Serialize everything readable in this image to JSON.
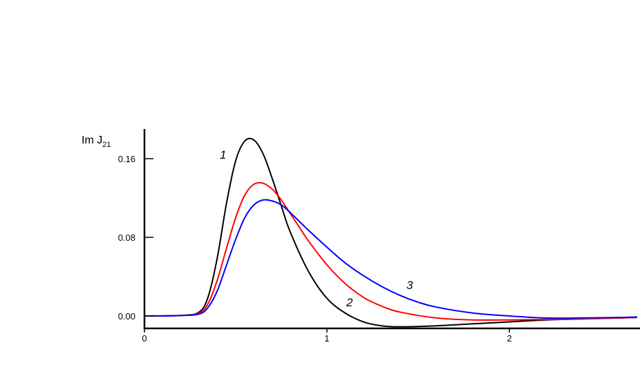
{
  "chart_data": {
    "type": "line",
    "ylabel": {
      "main": "Im J",
      "sub": "21"
    },
    "xlabel": "",
    "xlim": [
      0,
      2.7
    ],
    "ylim": [
      -0.012,
      0.19
    ],
    "x_ticks": [
      0,
      1,
      2
    ],
    "x_tick_labels": [
      "0",
      "1",
      "2"
    ],
    "y_ticks": [
      0.0,
      0.08,
      0.16
    ],
    "y_tick_labels": [
      "0.00",
      "0.08",
      "0.16"
    ],
    "grid": false,
    "series": [
      {
        "name": "1",
        "color": "#000000",
        "x": [
          0,
          0.2,
          0.3,
          0.35,
          0.4,
          0.45,
          0.5,
          0.55,
          0.6,
          0.65,
          0.7,
          0.75,
          0.8,
          0.9,
          1.0,
          1.1,
          1.2,
          1.3,
          1.4,
          1.6,
          1.8,
          2.0,
          2.2,
          2.4,
          2.6,
          2.7
        ],
        "y": [
          0.0,
          0.0005,
          0.004,
          0.02,
          0.06,
          0.115,
          0.158,
          0.178,
          0.179,
          0.165,
          0.14,
          0.112,
          0.085,
          0.045,
          0.018,
          0.003,
          -0.006,
          -0.01,
          -0.011,
          -0.01,
          -0.008,
          -0.006,
          -0.004,
          -0.003,
          -0.002,
          -0.0015
        ]
      },
      {
        "name": "2",
        "color": "#ff0000",
        "x": [
          0,
          0.2,
          0.3,
          0.35,
          0.4,
          0.45,
          0.5,
          0.55,
          0.6,
          0.65,
          0.7,
          0.75,
          0.8,
          0.85,
          0.9,
          1.0,
          1.1,
          1.2,
          1.3,
          1.4,
          1.6,
          1.8,
          2.0,
          2.2,
          2.4,
          2.6,
          2.7
        ],
        "y": [
          0.0,
          0.0005,
          0.003,
          0.013,
          0.037,
          0.069,
          0.1,
          0.123,
          0.134,
          0.135,
          0.129,
          0.118,
          0.104,
          0.09,
          0.076,
          0.052,
          0.033,
          0.019,
          0.01,
          0.004,
          -0.002,
          -0.004,
          -0.004,
          -0.0035,
          -0.003,
          -0.002,
          -0.0015
        ]
      },
      {
        "name": "3",
        "color": "#0000ff",
        "x": [
          0,
          0.2,
          0.3,
          0.35,
          0.4,
          0.45,
          0.5,
          0.55,
          0.6,
          0.65,
          0.7,
          0.75,
          0.8,
          0.9,
          1.0,
          1.1,
          1.2,
          1.3,
          1.4,
          1.5,
          1.6,
          1.8,
          2.0,
          2.2,
          2.4,
          2.6,
          2.7
        ],
        "y": [
          0.0,
          0.0005,
          0.002,
          0.009,
          0.026,
          0.052,
          0.078,
          0.1,
          0.113,
          0.118,
          0.117,
          0.113,
          0.105,
          0.087,
          0.07,
          0.054,
          0.041,
          0.03,
          0.021,
          0.014,
          0.009,
          0.003,
          0.0,
          -0.002,
          -0.002,
          -0.0015,
          -0.001
        ]
      }
    ],
    "annotations": [
      "1",
      "2",
      "3"
    ]
  }
}
